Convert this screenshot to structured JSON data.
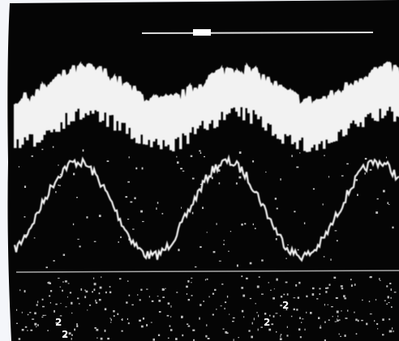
{
  "screen": {
    "markers": [
      "2",
      "2",
      "2",
      "2"
    ]
  }
}
